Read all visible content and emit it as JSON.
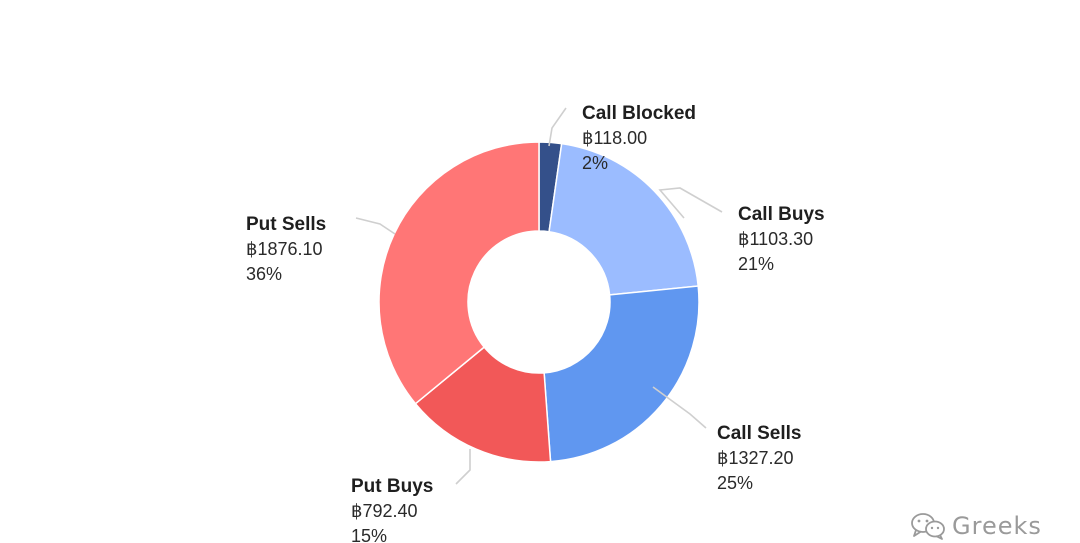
{
  "header": {
    "logo_text": "",
    "title_text": ""
  },
  "chart_data": {
    "type": "pie",
    "donut": true,
    "title": "",
    "slices": [
      {
        "label": "Call Blocked",
        "value": 118.0,
        "value_text": "฿118.00",
        "percent_text": "2%",
        "color": "#34508a"
      },
      {
        "label": "Call Buys",
        "value": 1103.3,
        "value_text": "฿1103.30",
        "percent_text": "21%",
        "color": "#9bbcff"
      },
      {
        "label": "Call Sells",
        "value": 1327.2,
        "value_text": "฿1327.20",
        "percent_text": "25%",
        "color": "#6097f0"
      },
      {
        "label": "Put Buys",
        "value": 792.4,
        "value_text": "฿792.40",
        "percent_text": "15%",
        "color": "#f25858"
      },
      {
        "label": "Put Sells",
        "value": 1876.1,
        "value_text": "฿1876.10",
        "percent_text": "36%",
        "color": "#ff7676"
      }
    ],
    "start_angle_deg": 0,
    "direction": "clockwise",
    "legend": "none",
    "leader_line_color": "#cfcfcf"
  },
  "watermark": {
    "text": "Greeks",
    "icon": "wechat-icon"
  }
}
